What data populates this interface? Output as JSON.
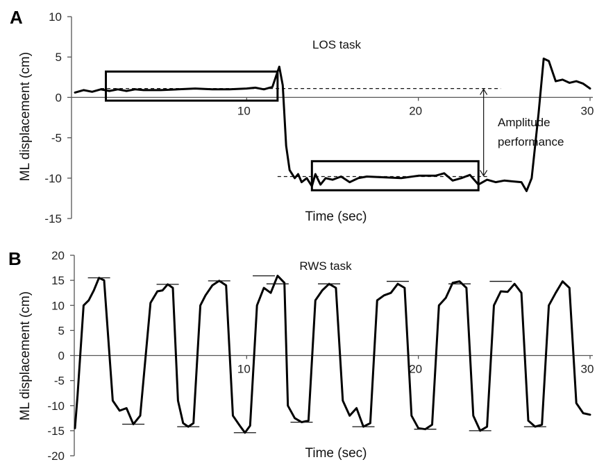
{
  "chart_data": [
    {
      "panel_label": "A",
      "type": "line",
      "title": "LOS task",
      "xlabel": "Time (sec)",
      "ylabel": "ML displacement (cm)",
      "xlim": [
        0,
        30
      ],
      "ylim": [
        -15,
        10
      ],
      "y_ticks": [
        10,
        5,
        0,
        -5,
        -10,
        -15
      ],
      "x_ticks": [
        10,
        20,
        30
      ],
      "annotation": "Amplitude performance",
      "reference_lines": [
        1.1,
        -9.8
      ],
      "series": [
        {
          "x": [
            0,
            0.5,
            1,
            1.5,
            2,
            2.5,
            3,
            3.5,
            4,
            5,
            6,
            7,
            8,
            9,
            10,
            10.5,
            11,
            11.5,
            11.9,
            12.1,
            12.3,
            12.5,
            12.8,
            13,
            13.2,
            13.5,
            13.8,
            14,
            14.3,
            14.6,
            15,
            15.5,
            16,
            16.5,
            17,
            18,
            19,
            20,
            21,
            21.5,
            22,
            22.5,
            23,
            23.5,
            24,
            24.5,
            25,
            25.5,
            26,
            26.3,
            26.6,
            27,
            27.3,
            27.6,
            28,
            28.4,
            28.8,
            29.2,
            29.6,
            30
          ],
          "values": [
            0.6,
            0.9,
            0.7,
            1.0,
            0.8,
            1.0,
            0.8,
            1.0,
            0.9,
            0.9,
            1.0,
            1.1,
            1.0,
            1.0,
            1.1,
            1.2,
            1.0,
            1.3,
            3.8,
            1.5,
            -6,
            -9,
            -10,
            -9.5,
            -10.5,
            -10,
            -11,
            -9.5,
            -10.8,
            -10,
            -10.2,
            -9.8,
            -10.5,
            -10,
            -9.8,
            -9.9,
            -10,
            -9.7,
            -9.7,
            -9.4,
            -10.3,
            -10,
            -9.6,
            -10.8,
            -10.2,
            -10.5,
            -10.3,
            -10.4,
            -10.5,
            -11.6,
            -10,
            -2,
            4.8,
            4.5,
            2.0,
            2.2,
            1.8,
            2.0,
            1.7,
            1.1
          ]
        }
      ],
      "boxes": [
        {
          "x0": 1.8,
          "x1": 11.8,
          "y0": -0.4,
          "y1": 3.2
        },
        {
          "x0": 13.8,
          "x1": 23.5,
          "y0": -11.5,
          "y1": -7.9
        }
      ]
    },
    {
      "panel_label": "B",
      "type": "line",
      "title": "RWS task",
      "xlabel": "Time (sec)",
      "ylabel": "ML displacement (cm)",
      "xlim": [
        0,
        30
      ],
      "ylim": [
        -20,
        20
      ],
      "y_ticks": [
        20,
        15,
        10,
        5,
        0,
        -5,
        -10,
        -15,
        -20
      ],
      "x_ticks": [
        10,
        20,
        30
      ],
      "peaks": [
        15.5,
        14.2,
        14.9,
        15.9,
        14.3,
        14.3,
        14.8,
        14.3,
        14.8
      ],
      "troughs": [
        -13.7,
        -14.2,
        -15.4,
        -13.3,
        -14.2,
        -14.7,
        -15.0,
        -14.2
      ],
      "series": [
        {
          "x": [
            0,
            0.15,
            0.5,
            0.8,
            1.1,
            1.4,
            1.7,
            2.2,
            2.6,
            3.0,
            3.4,
            3.8,
            4.4,
            4.8,
            5.1,
            5.4,
            5.7,
            6.0,
            6.3,
            6.6,
            6.9,
            7.3,
            7.6,
            8.0,
            8.4,
            8.8,
            9.2,
            9.6,
            9.9,
            10.2,
            10.6,
            11.0,
            11.4,
            11.8,
            12.2,
            12.4,
            12.8,
            13.2,
            13.6,
            14.0,
            14.4,
            14.8,
            15.2,
            15.6,
            16.0,
            16.4,
            16.8,
            17.2,
            17.6,
            18.0,
            18.4,
            18.8,
            19.2,
            19.6,
            20.0,
            20.4,
            20.8,
            21.2,
            21.6,
            22.0,
            22.4,
            22.8,
            23.2,
            23.6,
            24.0,
            24.4,
            24.8,
            25.2,
            25.6,
            26.0,
            26.4,
            26.8,
            27.2,
            27.6,
            28.0,
            28.4,
            28.8,
            29.2,
            29.6,
            30.0
          ],
          "values": [
            -14.5,
            -8,
            10,
            11,
            13,
            15.5,
            15,
            -9,
            -11,
            -10.5,
            -13.7,
            -12,
            10.5,
            12.8,
            13,
            14.2,
            13.5,
            -9,
            -13.5,
            -14.2,
            -13.5,
            10,
            12,
            14,
            14.9,
            14,
            -12,
            -14,
            -15.4,
            -14,
            10,
            13.5,
            12.5,
            15.9,
            14.5,
            -10,
            -12.5,
            -13.3,
            -13,
            11,
            13,
            14.3,
            13.5,
            -9,
            -12,
            -10.5,
            -14.2,
            -13.5,
            11,
            12,
            12.5,
            14.3,
            13.5,
            -12,
            -14.5,
            -14.7,
            -13.8,
            10,
            11.5,
            14.5,
            14.8,
            13.5,
            -12,
            -15,
            -14.2,
            10,
            12.8,
            12.7,
            14.3,
            12.5,
            -13,
            -14.2,
            -13.8,
            10,
            12.5,
            14.8,
            13.5,
            -9.5,
            -11.5,
            -11.8
          ]
        }
      ]
    }
  ]
}
